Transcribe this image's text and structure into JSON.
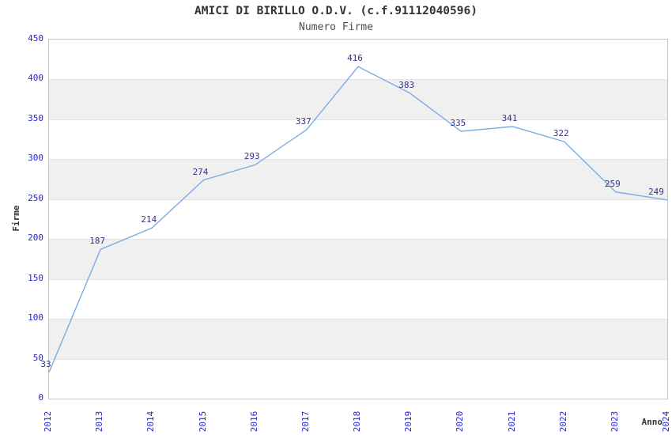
{
  "title": "AMICI DI BIRILLO O.D.V. (c.f.91112040596)",
  "subtitle": "Numero Firme",
  "chart_data": {
    "type": "line",
    "title": "AMICI DI BIRILLO O.D.V. (c.f.91112040596)",
    "subtitle": "Numero Firme",
    "categories": [
      "2012",
      "2013",
      "2014",
      "2015",
      "2016",
      "2017",
      "2018",
      "2019",
      "2020",
      "2021",
      "2022",
      "2023",
      "2024"
    ],
    "series": [
      {
        "name": "Numero Firme",
        "values": [
          33,
          187,
          214,
          274,
          293,
          337,
          416,
          383,
          335,
          341,
          322,
          259,
          249
        ]
      }
    ],
    "xlabel": "Anno",
    "ylabel": "Firme",
    "ylim": [
      0,
      450
    ],
    "ytick_step": 50,
    "yticks": [
      0,
      50,
      100,
      150,
      200,
      250,
      300,
      350,
      400,
      450
    ],
    "grid": "alternating-horizontal-bands",
    "legend": "none",
    "data_labels": "shown",
    "colors": {
      "line": "#7aace6",
      "tick_label": "#2323dd",
      "data_label": "#333388",
      "band_gray": "#f0f0f0",
      "band_white": "#ffffff",
      "gridline": "#e3e3e3",
      "plot_border": "#c6c6c6",
      "title": "#333333",
      "subtitle": "#4d4d4d",
      "axis_title": "#333333"
    }
  }
}
